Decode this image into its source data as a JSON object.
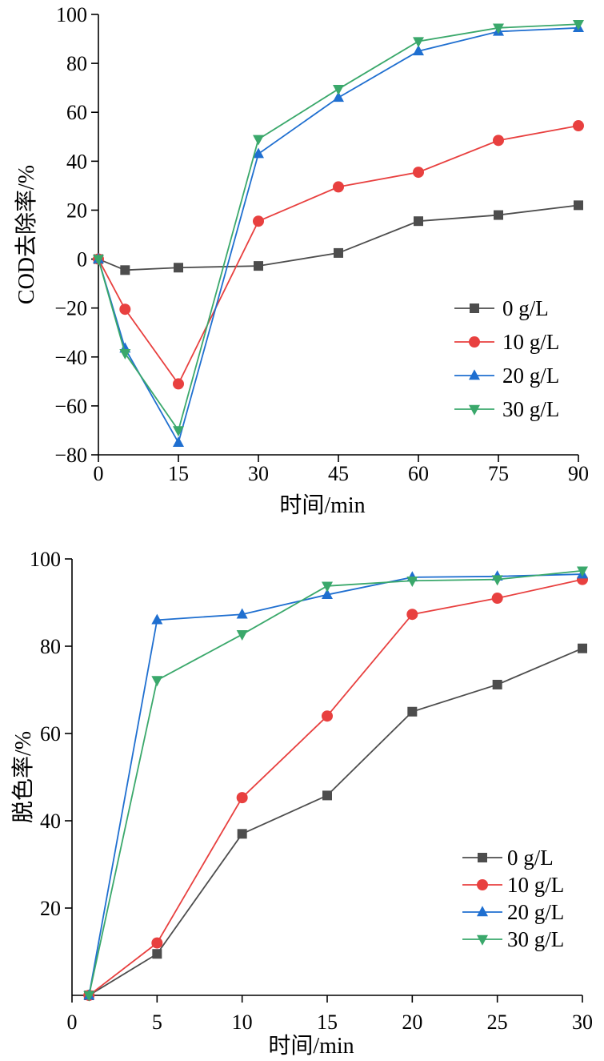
{
  "chart_data": [
    {
      "type": "line",
      "xlabel": "时间/min",
      "ylabel": "COD去除率/%",
      "xlim": [
        0,
        90
      ],
      "ylim": [
        -80,
        100
      ],
      "xticks": [
        0,
        15,
        30,
        45,
        60,
        75,
        90
      ],
      "yticks": [
        -80,
        -60,
        -40,
        -20,
        0,
        20,
        40,
        60,
        80,
        100
      ],
      "xtick_labels": [
        "0",
        "15",
        "30",
        "45",
        "60",
        "75",
        "90"
      ],
      "ytick_labels": [
        "−80",
        "−60",
        "−40",
        "−20",
        "0",
        "20",
        "40",
        "60",
        "80",
        "100"
      ],
      "grid": false,
      "legend_position": "bottom-right",
      "series": [
        {
          "name": "0 g/L",
          "color": "#4d4d4d",
          "marker": "square",
          "x": [
            0,
            5,
            15,
            30,
            45,
            60,
            75,
            90
          ],
          "y": [
            0,
            -4.5,
            -3.5,
            -2.8,
            2.5,
            15.5,
            18,
            22
          ]
        },
        {
          "name": "10 g/L",
          "color": "#e8403f",
          "marker": "circle",
          "x": [
            0,
            5,
            15,
            30,
            45,
            60,
            75,
            90
          ],
          "y": [
            0,
            -20.5,
            -51,
            15.5,
            29.5,
            35.5,
            48.5,
            54.5
          ]
        },
        {
          "name": "20 g/L",
          "color": "#1f6fd0",
          "marker": "triangle-up",
          "x": [
            0,
            5,
            15,
            30,
            45,
            60,
            75,
            90
          ],
          "y": [
            0,
            -36.5,
            -75,
            43,
            66,
            85,
            93,
            94.5
          ]
        },
        {
          "name": "30 g/L",
          "color": "#3aa86b",
          "marker": "triangle-down",
          "x": [
            0,
            5,
            15,
            30,
            45,
            60,
            75,
            90
          ],
          "y": [
            0,
            -38.5,
            -70,
            49,
            69.5,
            89,
            94.5,
            96
          ]
        }
      ]
    },
    {
      "type": "line",
      "xlabel": "时间/min",
      "ylabel": "脱色率/%",
      "xlim": [
        0,
        30
      ],
      "ylim": [
        0,
        100
      ],
      "xticks": [
        0,
        5,
        10,
        15,
        20,
        25,
        30
      ],
      "yticks": [
        20,
        40,
        60,
        80,
        100
      ],
      "xtick_labels": [
        "0",
        "5",
        "10",
        "15",
        "20",
        "25",
        "30"
      ],
      "ytick_labels": [
        "20",
        "40",
        "60",
        "80",
        "100"
      ],
      "grid": false,
      "legend_position": "bottom-right",
      "series": [
        {
          "name": "0 g/L",
          "color": "#4d4d4d",
          "marker": "square",
          "x": [
            1,
            5,
            10,
            15,
            20,
            25,
            30
          ],
          "y": [
            0,
            9.5,
            37,
            45.8,
            65,
            71.2,
            79.5
          ]
        },
        {
          "name": "10 g/L",
          "color": "#e8403f",
          "marker": "circle",
          "x": [
            1,
            5,
            10,
            15,
            20,
            25,
            30
          ],
          "y": [
            0,
            12,
            45.3,
            64,
            87.3,
            91,
            95.3
          ]
        },
        {
          "name": "20 g/L",
          "color": "#1f6fd0",
          "marker": "triangle-up",
          "x": [
            1,
            5,
            10,
            15,
            20,
            25,
            30
          ],
          "y": [
            0,
            86,
            87.3,
            91.8,
            95.8,
            96,
            96.5
          ]
        },
        {
          "name": "30 g/L",
          "color": "#3aa86b",
          "marker": "triangle-down",
          "x": [
            1,
            5,
            10,
            15,
            20,
            25,
            30
          ],
          "y": [
            0,
            72.2,
            82.7,
            93.8,
            95,
            95.3,
            97.3
          ]
        }
      ]
    }
  ]
}
